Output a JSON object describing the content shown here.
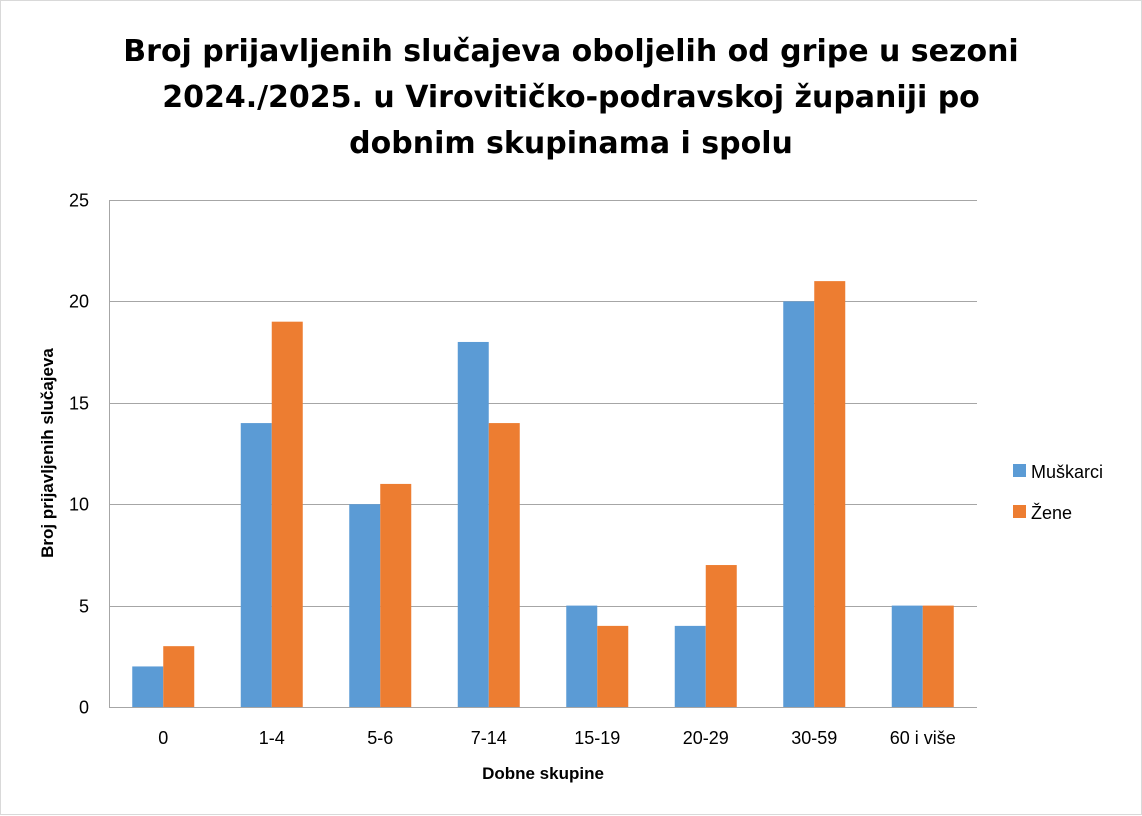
{
  "chart_data": {
    "type": "bar",
    "title_lines": [
      "Broj prijavljenih slučajeva oboljelih od gripe u sezoni",
      "2024./2025. u Virovitičko-podravskoj županiji po",
      "dobnim skupinama i spolu"
    ],
    "xlabel": "Dobne skupine",
    "ylabel": "Broj prijavljenih slučajeva",
    "categories": [
      "0",
      "1-4",
      "5-6",
      "7-14",
      "15-19",
      "20-29",
      "30-59",
      "60 i više"
    ],
    "series": [
      {
        "name": "Muškarci",
        "color": "#5b9bd5",
        "values": [
          2,
          14,
          10,
          18,
          5,
          4,
          20,
          5
        ]
      },
      {
        "name": "Žene",
        "color": "#ed7d31",
        "values": [
          3,
          19,
          11,
          14,
          4,
          7,
          21,
          5
        ]
      }
    ],
    "ylim": [
      0,
      25
    ],
    "yticks": [
      0,
      5,
      10,
      15,
      20,
      25
    ],
    "grid": true,
    "legend_position": "right"
  }
}
